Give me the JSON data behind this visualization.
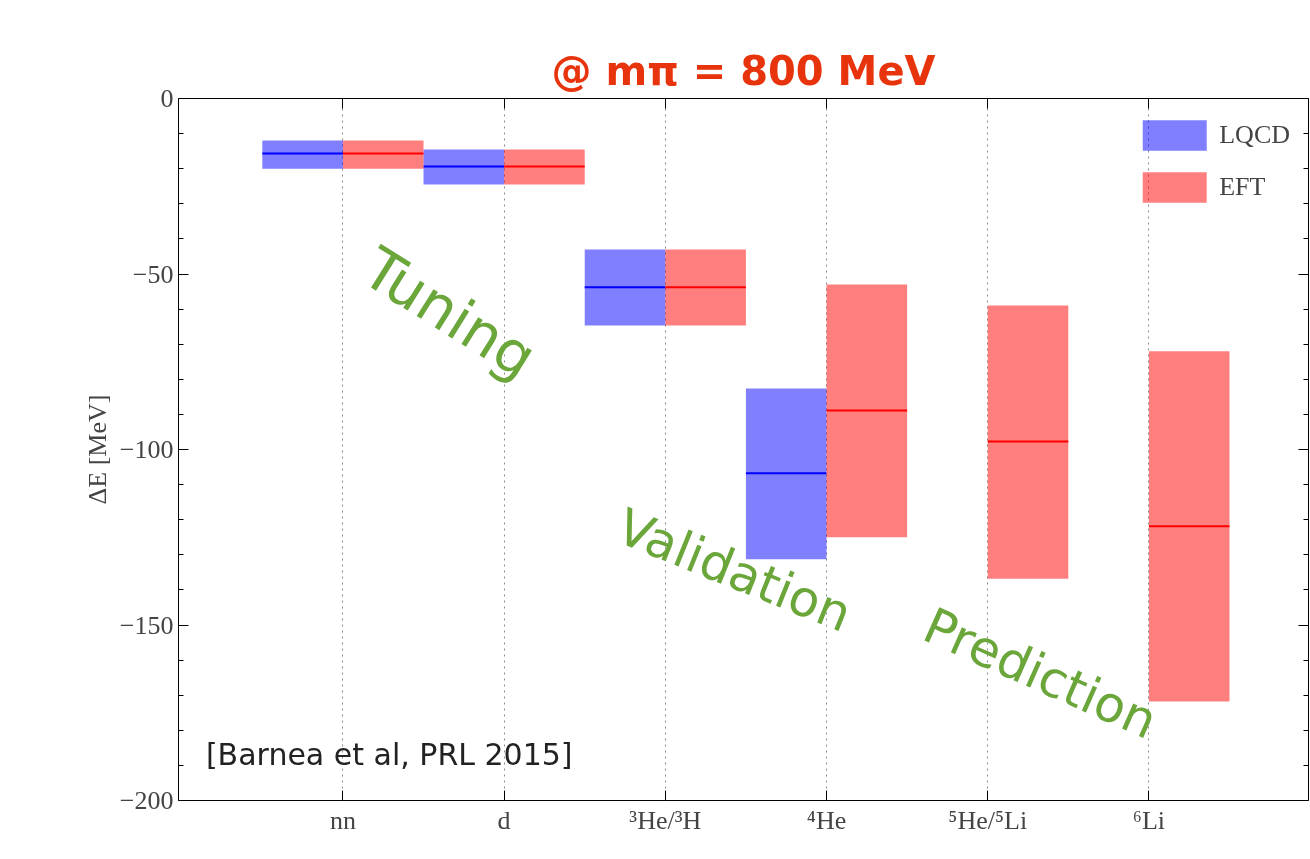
{
  "chart_data": {
    "type": "box",
    "title": "@ mπ = 800 MeV",
    "ylabel": "ΔE [MeV]",
    "categories": [
      "nn",
      "d",
      "³He/³H",
      "⁴He",
      "⁵He/⁵Li",
      "⁶Li"
    ],
    "ylim": [
      -200,
      0
    ],
    "yticks": [
      0,
      {
        "value": -50,
        "label": "−50"
      },
      {
        "value": -100,
        "label": "−100"
      },
      {
        "value": -150,
        "label": "−150"
      },
      {
        "value": -200,
        "label": "−200"
      }
    ],
    "grid": "x",
    "legend": "top right",
    "series": [
      {
        "name": "LQCD",
        "color": "#0000ff",
        "boxes": [
          {
            "low": -20,
            "q1": -20,
            "median": -15.7,
            "q3": -12,
            "high": -12
          },
          {
            "low": -24.5,
            "q1": -24.5,
            "median": -19.4,
            "q3": -14.5,
            "high": -14.5
          },
          {
            "low": -64.7,
            "q1": -64.7,
            "median": -53.8,
            "q3": -43,
            "high": -43
          },
          {
            "low": -131.3,
            "q1": -131.3,
            "median": -106.8,
            "q3": -82.6,
            "high": -82.6
          },
          null,
          null
        ]
      },
      {
        "name": "EFT",
        "color": "#ff0000",
        "boxes": [
          {
            "low": -20,
            "q1": -20,
            "median": -15.7,
            "q3": -12,
            "high": -12
          },
          {
            "low": -24.5,
            "q1": -24.5,
            "median": -19.4,
            "q3": -14.5,
            "high": -14.5
          },
          {
            "low": -64.7,
            "q1": -64.7,
            "median": -53.8,
            "q3": -43,
            "high": -43
          },
          {
            "low": -125,
            "q1": -125,
            "median": -88.9,
            "q3": -53,
            "high": -53
          },
          {
            "low": -136.8,
            "q1": -136.8,
            "median": -97.7,
            "q3": -59,
            "high": -59
          },
          {
            "low": -171.8,
            "q1": -171.8,
            "median": -121.9,
            "q3": -72,
            "high": -72
          }
        ]
      }
    ],
    "annotations": [
      "Tuning",
      "Validation",
      "Prediction",
      "[Barnea et al, PRL 2015]"
    ]
  }
}
